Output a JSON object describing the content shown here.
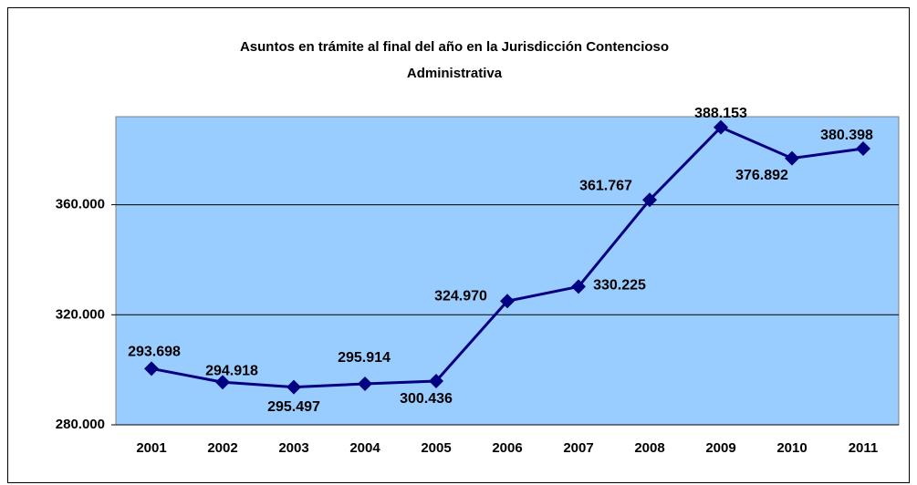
{
  "chart_data": {
    "type": "line",
    "title": [
      "Asuntos en trámite al final del año en la Jurisdicción Contencioso",
      "Administrativa"
    ],
    "categories": [
      "2001",
      "2002",
      "2003",
      "2004",
      "2005",
      "2006",
      "2007",
      "2008",
      "2009",
      "2010",
      "2011"
    ],
    "series": [
      {
        "color": "#000080",
        "values": [
          300436,
          295497,
          293698,
          294918,
          295914,
          324970,
          330225,
          361767,
          388153,
          376892,
          380398
        ]
      }
    ],
    "annotations": [
      "293.698",
      "294.918",
      "295.497",
      "295.914",
      "300.436",
      "324.970",
      "330.225",
      "361.767",
      "388.153",
      "376.892",
      "380.398"
    ],
    "ylim": [
      280000,
      392000
    ],
    "yticks": [
      {
        "value": 280000,
        "label": "280.000"
      },
      {
        "value": 320000,
        "label": "320.000"
      },
      {
        "value": 360000,
        "label": "360.000"
      }
    ],
    "grid": true,
    "plot_background": "#99ccff"
  }
}
